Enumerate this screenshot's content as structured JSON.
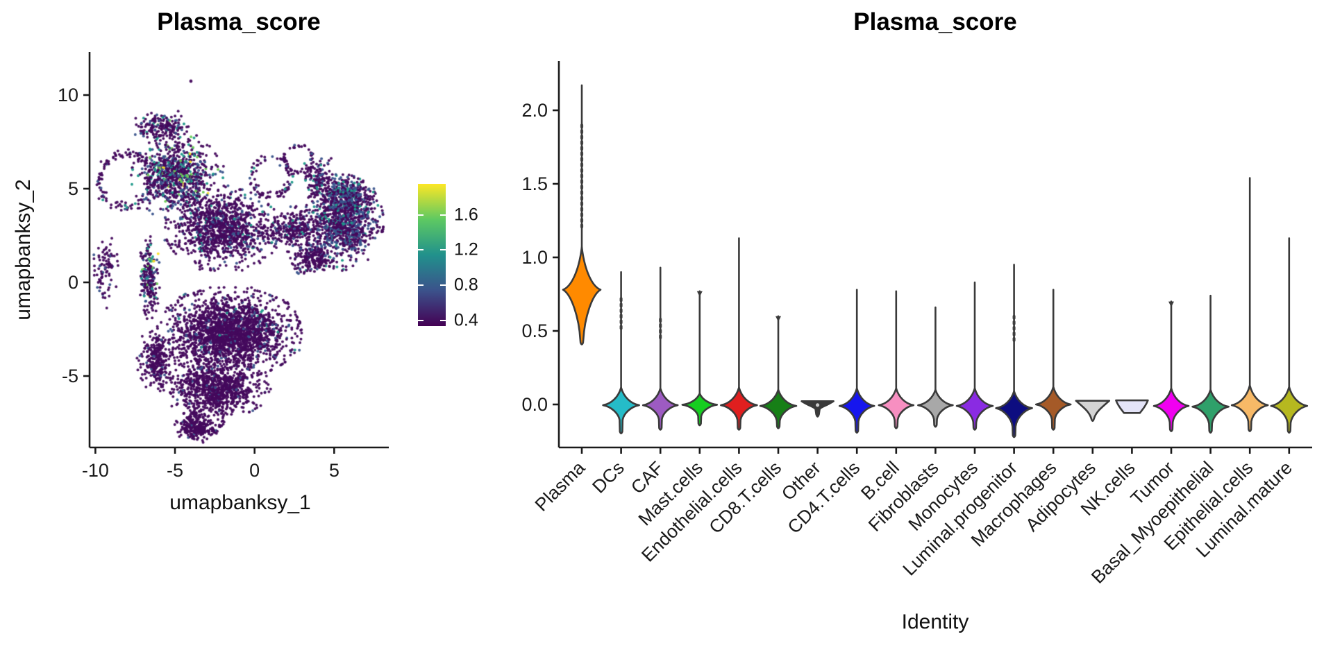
{
  "figure": {
    "background": "#FFFFFF"
  },
  "chart_data": [
    {
      "type": "scatter",
      "title": "Plasma_score",
      "xlabel": "umapbanksy_1",
      "ylabel": "umapbanksy_2",
      "x_ticks": [
        -10,
        -5,
        0,
        5
      ],
      "y_ticks": [
        10,
        5,
        0,
        -5
      ],
      "xlim": [
        -10.4,
        8.4
      ],
      "ylim": [
        -8.8,
        12.3
      ],
      "grid": false,
      "point_palette": {
        "dark": "#45095D",
        "blue": "#3A548C",
        "teal": "#1F998A",
        "green": "#6FCE59",
        "yellow": "#F8E42A"
      },
      "colorbar": {
        "tick_labels": [
          "1.6",
          "1.2",
          "0.8",
          "0.4"
        ],
        "tick_values": [
          1.6,
          1.2,
          0.8,
          0.4
        ],
        "value_range": [
          0.34,
          1.95
        ],
        "gradient_bottom_to_top": [
          "#440154",
          "#3B528B",
          "#21918C",
          "#5EC962",
          "#FDE725"
        ]
      },
      "clusters": [
        {
          "type": "blob",
          "cx": -4.87,
          "cy": 5.63,
          "rx": 2.62,
          "ry": 2.04,
          "n": 850,
          "mix": {
            "dark": 0.6,
            "blue": 0.23,
            "teal": 0.11,
            "green": 0.04,
            "yellow": 0.02
          }
        },
        {
          "type": "blob",
          "cx": -5.74,
          "cy": 8.22,
          "rx": 1.96,
          "ry": 0.93,
          "n": 200,
          "mix": {
            "dark": 0.78,
            "blue": 0.15,
            "teal": 0.06,
            "green": 0.01
          }
        },
        {
          "type": "ring",
          "cx": -8.14,
          "cy": 5.44,
          "rx": 1.66,
          "ry": 1.41,
          "n": 130,
          "mix": {
            "dark": 0.85,
            "blue": 0.12,
            "teal": 0.03
          }
        },
        {
          "type": "blob",
          "cx": -6.62,
          "cy": 0.26,
          "rx": 0.61,
          "ry": 2.04,
          "n": 230,
          "mix": {
            "dark": 0.7,
            "blue": 0.17,
            "teal": 0.08,
            "green": 0.03,
            "yellow": 0.02
          }
        },
        {
          "type": "blob",
          "cx": -2.04,
          "cy": 2.85,
          "rx": 3.27,
          "ry": 2.04,
          "n": 1100,
          "mix": {
            "dark": 0.87,
            "blue": 0.1,
            "teal": 0.03
          }
        },
        {
          "type": "ring",
          "cx": 1.02,
          "cy": 5.63,
          "rx": 1.22,
          "ry": 1.04,
          "n": 80,
          "mix": {
            "dark": 0.9,
            "blue": 0.08,
            "teal": 0.02
          }
        },
        {
          "type": "blob",
          "cx": 2.32,
          "cy": 2.85,
          "rx": 1.96,
          "ry": 1.11,
          "n": 300,
          "mix": {
            "dark": 0.88,
            "blue": 0.1,
            "teal": 0.02
          }
        },
        {
          "type": "blob",
          "cx": 5.6,
          "cy": 3.22,
          "rx": 2.27,
          "ry": 2.3,
          "n": 1000,
          "mix": {
            "dark": 0.66,
            "blue": 0.26,
            "teal": 0.08
          }
        },
        {
          "type": "blob",
          "cx": 5.81,
          "cy": 4.52,
          "rx": 1.7,
          "ry": 1.0,
          "n": 350,
          "mix": {
            "dark": 0.55,
            "blue": 0.35,
            "teal": 0.1
          }
        },
        {
          "type": "blob",
          "cx": 3.63,
          "cy": 1.37,
          "rx": 1.53,
          "ry": 0.93,
          "n": 220,
          "mix": {
            "dark": 0.85,
            "blue": 0.13,
            "teal": 0.02
          }
        },
        {
          "type": "blob",
          "cx": -1.6,
          "cy": -2.7,
          "rx": 4.14,
          "ry": 2.22,
          "n": 2100,
          "mix": {
            "dark": 0.93,
            "blue": 0.06,
            "teal": 0.01
          }
        },
        {
          "type": "blob",
          "cx": -2.47,
          "cy": -5.67,
          "rx": 3.05,
          "ry": 1.48,
          "n": 900,
          "mix": {
            "dark": 0.95,
            "blue": 0.05
          }
        },
        {
          "type": "blob",
          "cx": -3.56,
          "cy": -7.7,
          "rx": 1.31,
          "ry": 0.81,
          "n": 250,
          "mix": {
            "dark": 0.96,
            "blue": 0.04
          }
        },
        {
          "type": "blob",
          "cx": -6.18,
          "cy": -4.19,
          "rx": 1.09,
          "ry": 1.67,
          "n": 280,
          "mix": {
            "dark": 0.94,
            "blue": 0.06
          }
        },
        {
          "type": "blob",
          "cx": -9.45,
          "cy": 0.63,
          "rx": 0.78,
          "ry": 1.85,
          "n": 90,
          "mix": {
            "dark": 0.9,
            "blue": 0.1
          }
        },
        {
          "type": "ring",
          "cx": -2.91,
          "cy": -7.15,
          "rx": 0.96,
          "ry": 0.81,
          "n": 60,
          "mix": {
            "dark": 1.0
          }
        },
        {
          "type": "ring",
          "cx": 2.76,
          "cy": 6.56,
          "rx": 0.87,
          "ry": 0.74,
          "n": 55,
          "mix": {
            "dark": 0.9,
            "blue": 0.1
          }
        },
        {
          "type": "blob",
          "cx": 4.07,
          "cy": 5.44,
          "rx": 1.09,
          "ry": 1.3,
          "n": 140,
          "mix": {
            "dark": 0.8,
            "blue": 0.15,
            "teal": 0.05
          }
        }
      ],
      "outlier_points": [
        {
          "x": -4.0,
          "y": 10.74,
          "color": "dark"
        }
      ]
    },
    {
      "type": "violin",
      "title": "Plasma_score",
      "xlabel": "Identity",
      "y_tick_labels": [
        "0.0",
        "0.5",
        "1.0",
        "1.5",
        "2.0"
      ],
      "y_tick_values": [
        0,
        0.5,
        1.0,
        1.5,
        2.0
      ],
      "ylim": [
        -0.35,
        2.3
      ],
      "grid": false,
      "categories": [
        {
          "label": "Plasma",
          "color": "#FF8A00",
          "tail_max": 2.17,
          "shape": "plasma",
          "body": {
            "top": 1.07,
            "widest_at": 0.78,
            "bottom": 0.44
          },
          "halfwidth": 27,
          "spike_to": 0.42,
          "top_marker": false,
          "tail_dash": [
            1.2,
            1.9
          ]
        },
        {
          "label": "DCs",
          "color": "#25BCC8",
          "tail_max": 0.9,
          "shape": "diamond",
          "body": {
            "top": 0.115,
            "widest_at": -0.005,
            "bottom": -0.105
          },
          "halfwidth": 26,
          "spike_to": -0.185,
          "top_marker": false,
          "tail_dash": [
            0.5,
            0.72
          ]
        },
        {
          "label": "CAF",
          "color": "#9D5BC2",
          "tail_max": 0.93,
          "shape": "diamond",
          "body": {
            "top": 0.11,
            "widest_at": -0.005,
            "bottom": -0.1
          },
          "halfwidth": 25,
          "spike_to": -0.16,
          "top_marker": false,
          "tail_dash": [
            0.45,
            0.58
          ]
        },
        {
          "label": "Mast.cells",
          "color": "#16CE20",
          "tail_max": 0.77,
          "shape": "diamond",
          "body": {
            "top": 0.075,
            "widest_at": -0.002,
            "bottom": -0.08
          },
          "halfwidth": 25,
          "spike_to": -0.13,
          "top_marker": true,
          "tail_dash": null
        },
        {
          "label": "Endothelial.cells",
          "color": "#E01F1F",
          "tail_max": 1.13,
          "shape": "diamond",
          "body": {
            "top": 0.115,
            "widest_at": -0.005,
            "bottom": -0.105
          },
          "halfwidth": 26,
          "spike_to": -0.16,
          "top_marker": false,
          "tail_dash": null
        },
        {
          "label": "CD8.T.cells",
          "color": "#177F17",
          "tail_max": 0.6,
          "shape": "diamond",
          "body": {
            "top": 0.1,
            "widest_at": -0.01,
            "bottom": -0.11
          },
          "halfwidth": 26,
          "spike_to": -0.15,
          "top_marker": true,
          "tail_dash": null
        },
        {
          "label": "Other",
          "color": "#3A3A3A",
          "tail_max": null,
          "shape": "flat",
          "body": {
            "top": 0.022,
            "widest_at": 0.0,
            "bottom": -0.075
          },
          "halfwidth": 23,
          "spike_to": -0.085,
          "top_marker": false,
          "tail_dash": null
        },
        {
          "label": "CD4.T.cells",
          "color": "#1616EE",
          "tail_max": 0.78,
          "shape": "diamond",
          "body": {
            "top": 0.11,
            "widest_at": -0.01,
            "bottom": -0.115
          },
          "halfwidth": 25,
          "spike_to": -0.18,
          "top_marker": false,
          "tail_dash": null
        },
        {
          "label": "B.cell",
          "color": "#F78FC1",
          "tail_max": 0.77,
          "shape": "diamond",
          "body": {
            "top": 0.11,
            "widest_at": -0.005,
            "bottom": -0.105
          },
          "halfwidth": 25,
          "spike_to": -0.15,
          "top_marker": false,
          "tail_dash": null
        },
        {
          "label": "Fibroblasts",
          "color": "#A8A8A8",
          "tail_max": 0.66,
          "shape": "diamond",
          "body": {
            "top": 0.1,
            "widest_at": -0.005,
            "bottom": -0.1
          },
          "halfwidth": 25,
          "spike_to": -0.14,
          "top_marker": false,
          "tail_dash": null
        },
        {
          "label": "Monocytes",
          "color": "#8A2BE2",
          "tail_max": 0.83,
          "shape": "diamond",
          "body": {
            "top": 0.11,
            "widest_at": -0.01,
            "bottom": -0.12
          },
          "halfwidth": 26,
          "spike_to": -0.16,
          "top_marker": false,
          "tail_dash": null
        },
        {
          "label": "Luminal.progenitor",
          "color": "#0D0D80",
          "tail_max": 0.95,
          "shape": "diamond",
          "body": {
            "top": 0.09,
            "widest_at": -0.025,
            "bottom": -0.15
          },
          "halfwidth": 26,
          "spike_to": -0.21,
          "top_marker": false,
          "tail_dash": [
            0.42,
            0.6
          ]
        },
        {
          "label": "Macrophages",
          "color": "#A55A28",
          "tail_max": 0.78,
          "shape": "diamond",
          "body": {
            "top": 0.12,
            "widest_at": 0.0,
            "bottom": -0.1
          },
          "halfwidth": 25,
          "spike_to": -0.16,
          "top_marker": false,
          "tail_dash": null
        },
        {
          "label": "Adipocytes",
          "color": "#D4D4D4",
          "tail_max": null,
          "shape": "triangle",
          "body": {
            "top": 0.025,
            "widest_at": 0.0,
            "bottom": -0.1
          },
          "halfwidth": 24,
          "spike_to": -0.11,
          "top_marker": false,
          "tail_dash": null
        },
        {
          "label": "NK.cells",
          "color": "#E4E4F8",
          "tail_max": null,
          "shape": "trapezoid",
          "body": {
            "top": 0.028,
            "widest_at": 0.0,
            "bottom": -0.058
          },
          "halfwidth": 23,
          "spike_to": null,
          "top_marker": false,
          "tail_dash": null
        },
        {
          "label": "Tumor",
          "color": "#F000F0",
          "tail_max": 0.7,
          "shape": "diamond",
          "body": {
            "top": 0.11,
            "widest_at": -0.01,
            "bottom": -0.12
          },
          "halfwidth": 25,
          "spike_to": -0.17,
          "top_marker": true,
          "tail_dash": null
        },
        {
          "label": "Basal_Myoepithelial",
          "color": "#2FA06A",
          "tail_max": 0.74,
          "shape": "diamond",
          "body": {
            "top": 0.1,
            "widest_at": -0.015,
            "bottom": -0.13
          },
          "halfwidth": 26,
          "spike_to": -0.18,
          "top_marker": false,
          "tail_dash": null
        },
        {
          "label": "Epithelial.cells",
          "color": "#F7B967",
          "tail_max": 1.54,
          "shape": "diamond",
          "body": {
            "top": 0.13,
            "widest_at": -0.005,
            "bottom": -0.115
          },
          "halfwidth": 26,
          "spike_to": -0.17,
          "top_marker": false,
          "tail_dash": null
        },
        {
          "label": "Luminal.mature",
          "color": "#B6B81F",
          "tail_max": 1.13,
          "shape": "diamond",
          "body": {
            "top": 0.12,
            "widest_at": -0.01,
            "bottom": -0.125
          },
          "halfwidth": 26,
          "spike_to": -0.18,
          "top_marker": false,
          "tail_dash": null
        }
      ]
    }
  ]
}
